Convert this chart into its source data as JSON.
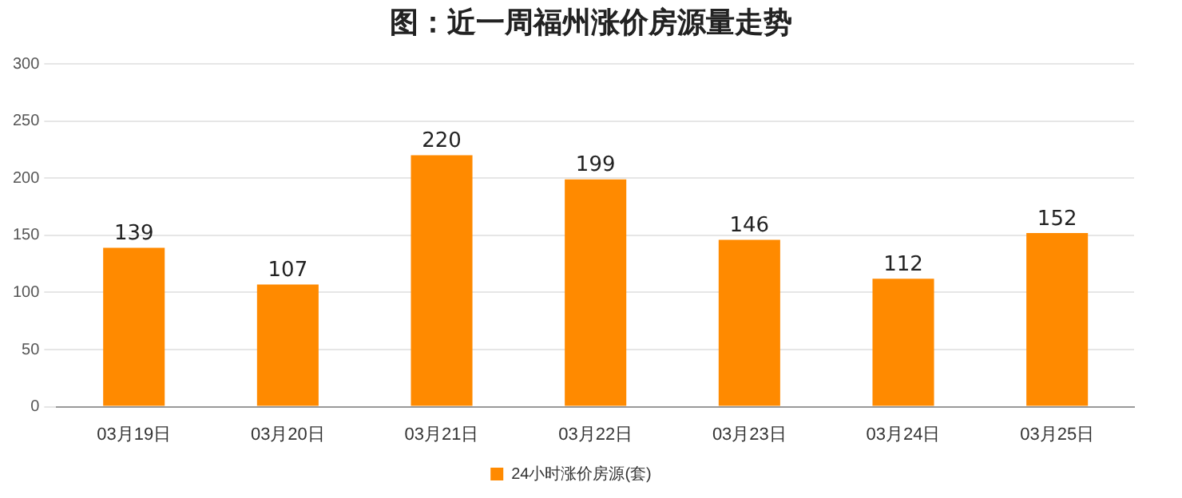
{
  "chart_data": {
    "type": "bar",
    "title": "图：近一周福州涨价房源量走势",
    "categories": [
      "03月19日",
      "03月20日",
      "03月21日",
      "03月22日",
      "03月23日",
      "03月24日",
      "03月25日"
    ],
    "series": [
      {
        "name": "24小时涨价房源(套)",
        "color": "#ff8a00",
        "values": [
          139,
          107,
          220,
          199,
          146,
          112,
          152
        ]
      }
    ],
    "ylim": [
      0,
      300
    ],
    "yticks": [
      0,
      50,
      100,
      150,
      200,
      250,
      300
    ],
    "grid": "y",
    "legend": "bottom",
    "data_labels": true
  }
}
